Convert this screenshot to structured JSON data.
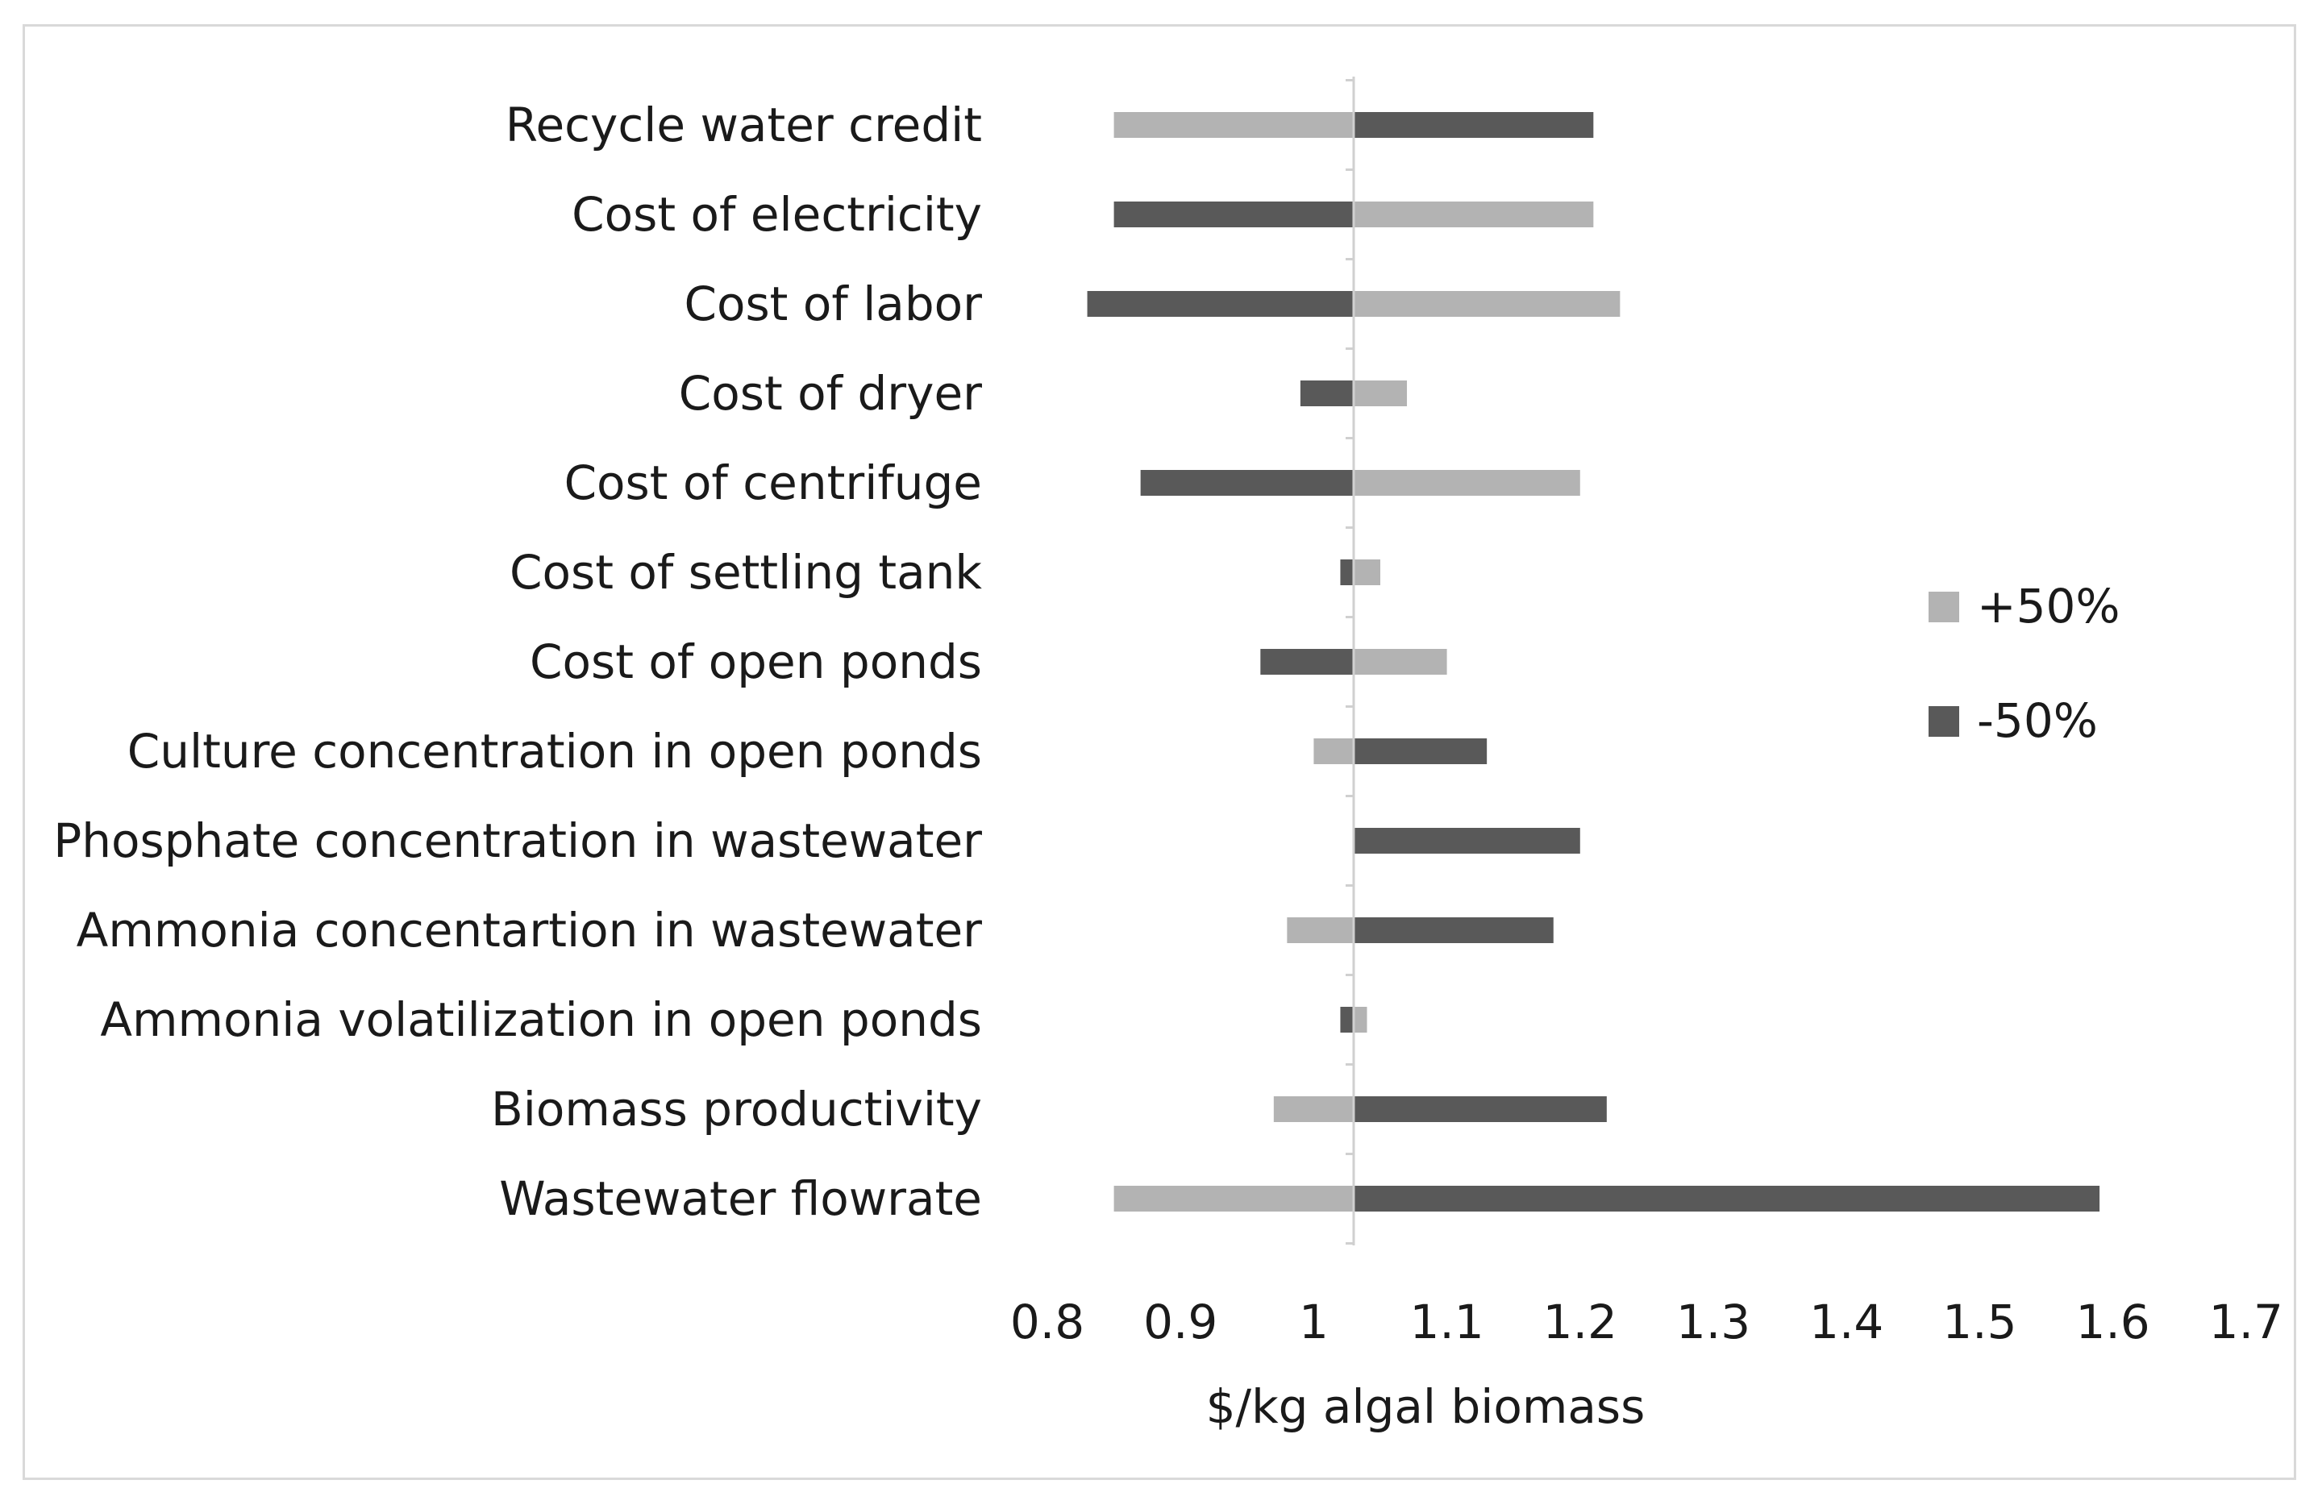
{
  "chart_data": {
    "type": "bar",
    "orientation": "horizontal-tornado",
    "title": "",
    "xlabel": "$/kg algal biomass",
    "ylabel": "",
    "baseline": 1.03,
    "xlim": [
      0.8,
      1.7
    ],
    "xticks": [
      "0.8",
      "0.9",
      "1",
      "1.1",
      "1.2",
      "1.3",
      "1.4",
      "1.5",
      "1.6",
      "1.7"
    ],
    "grid": false,
    "legend_position": "right",
    "colors": {
      "plus50": "#b3b3b3",
      "minus50": "#595959",
      "axis": "#d0d0d0",
      "frame": "#d9d9d9"
    },
    "categories": [
      "Recycle water credit",
      "Cost of electricity",
      "Cost of labor",
      "Cost of dryer",
      "Cost of centrifuge",
      "Cost of settling tank",
      "Cost of open ponds",
      "Culture concentration in open ponds",
      "Phosphate concentration in wastewater",
      "Ammonia concentartion in wastewater",
      "Ammonia volatilization in open ponds",
      "Biomass productivity",
      "Wastewater flowrate"
    ],
    "series": [
      {
        "name": "+50%",
        "values": [
          0.85,
          1.21,
          1.23,
          1.07,
          1.2,
          1.05,
          1.1,
          1.0,
          1.03,
          0.98,
          1.04,
          0.97,
          0.85
        ]
      },
      {
        "name": "-50%",
        "values": [
          1.21,
          0.85,
          0.83,
          0.99,
          0.87,
          1.02,
          0.96,
          1.13,
          1.2,
          1.18,
          1.02,
          1.22,
          1.59
        ]
      }
    ]
  }
}
